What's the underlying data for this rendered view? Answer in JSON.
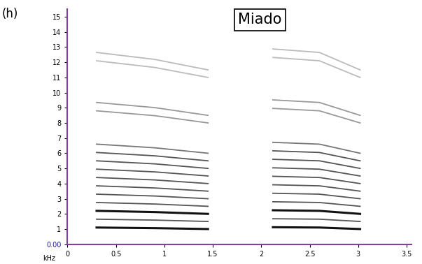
{
  "chart_data": {
    "type": "line",
    "title": "Miado",
    "panel_label": "(h)",
    "ylabel": "kHz",
    "xlim": [
      0,
      3.55
    ],
    "xticks": [
      0,
      0.5,
      1,
      1.5,
      2,
      2.5,
      3,
      3.5
    ],
    "ylim": [
      0,
      15.5
    ],
    "yticks": [
      {
        "value": 0,
        "label": "0.00"
      },
      1,
      2,
      3,
      4,
      5,
      6,
      7,
      8,
      9,
      10,
      11,
      12,
      13,
      14,
      15
    ],
    "grid": false,
    "series": [
      {
        "color": "#111111",
        "x": [
          0.3,
          0.9,
          1.45
        ],
        "values": [
          1.1,
          1.06,
          1.0
        ]
      },
      {
        "color": "#555555",
        "x": [
          0.3,
          0.9,
          1.45
        ],
        "values": [
          1.65,
          1.59,
          1.5
        ]
      },
      {
        "color": "#111111",
        "x": [
          0.3,
          0.9,
          1.45
        ],
        "values": [
          2.2,
          2.12,
          2.0
        ]
      },
      {
        "color": "#555555",
        "x": [
          0.3,
          0.9,
          1.45
        ],
        "values": [
          2.75,
          2.65,
          2.5
        ]
      },
      {
        "color": "#555555",
        "x": [
          0.3,
          0.9,
          1.45
        ],
        "values": [
          3.3,
          3.18,
          3.0
        ]
      },
      {
        "color": "#555555",
        "x": [
          0.3,
          0.9,
          1.45
        ],
        "values": [
          3.85,
          3.71,
          3.5
        ]
      },
      {
        "color": "#555555",
        "x": [
          0.3,
          0.9,
          1.45
        ],
        "values": [
          4.4,
          4.24,
          4.0
        ]
      },
      {
        "color": "#555555",
        "x": [
          0.3,
          0.9,
          1.45
        ],
        "values": [
          4.95,
          4.77,
          4.5
        ]
      },
      {
        "color": "#555555",
        "x": [
          0.3,
          0.9,
          1.45
        ],
        "values": [
          5.5,
          5.3,
          5.0
        ]
      },
      {
        "color": "#555555",
        "x": [
          0.3,
          0.9,
          1.45
        ],
        "values": [
          6.05,
          5.83,
          5.5
        ]
      },
      {
        "color": "#777777",
        "x": [
          0.3,
          0.9,
          1.45
        ],
        "values": [
          6.6,
          6.36,
          6.0
        ]
      },
      {
        "color": "#999999",
        "x": [
          0.3,
          0.9,
          1.45
        ],
        "values": [
          8.8,
          8.48,
          8.0
        ]
      },
      {
        "color": "#999999",
        "x": [
          0.3,
          0.9,
          1.45
        ],
        "values": [
          9.35,
          9.01,
          8.5
        ]
      },
      {
        "color": "#bbbbbb",
        "x": [
          0.3,
          0.9,
          1.45
        ],
        "values": [
          12.1,
          11.66,
          11.0
        ]
      },
      {
        "color": "#bbbbbb",
        "x": [
          0.3,
          0.9,
          1.45
        ],
        "values": [
          12.65,
          12.19,
          11.5
        ]
      },
      {
        "color": "#111111",
        "x": [
          2.12,
          2.6,
          3.02
        ],
        "values": [
          1.12,
          1.1,
          1.0
        ]
      },
      {
        "color": "#555555",
        "x": [
          2.12,
          2.6,
          3.02
        ],
        "values": [
          1.68,
          1.65,
          1.5
        ]
      },
      {
        "color": "#111111",
        "x": [
          2.12,
          2.6,
          3.02
        ],
        "values": [
          2.24,
          2.2,
          2.0
        ]
      },
      {
        "color": "#555555",
        "x": [
          2.12,
          2.6,
          3.02
        ],
        "values": [
          2.8,
          2.75,
          2.5
        ]
      },
      {
        "color": "#555555",
        "x": [
          2.12,
          2.6,
          3.02
        ],
        "values": [
          3.36,
          3.3,
          3.0
        ]
      },
      {
        "color": "#555555",
        "x": [
          2.12,
          2.6,
          3.02
        ],
        "values": [
          3.92,
          3.85,
          3.5
        ]
      },
      {
        "color": "#555555",
        "x": [
          2.12,
          2.6,
          3.02
        ],
        "values": [
          4.48,
          4.4,
          4.0
        ]
      },
      {
        "color": "#555555",
        "x": [
          2.12,
          2.6,
          3.02
        ],
        "values": [
          5.04,
          4.95,
          4.5
        ]
      },
      {
        "color": "#555555",
        "x": [
          2.12,
          2.6,
          3.02
        ],
        "values": [
          5.6,
          5.5,
          5.0
        ]
      },
      {
        "color": "#555555",
        "x": [
          2.12,
          2.6,
          3.02
        ],
        "values": [
          6.16,
          6.05,
          5.5
        ]
      },
      {
        "color": "#777777",
        "x": [
          2.12,
          2.6,
          3.02
        ],
        "values": [
          6.72,
          6.6,
          6.0
        ]
      },
      {
        "color": "#999999",
        "x": [
          2.12,
          2.6,
          3.02
        ],
        "values": [
          8.96,
          8.8,
          8.0
        ]
      },
      {
        "color": "#999999",
        "x": [
          2.12,
          2.6,
          3.02
        ],
        "values": [
          9.52,
          9.35,
          8.5
        ]
      },
      {
        "color": "#bbbbbb",
        "x": [
          2.12,
          2.6,
          3.02
        ],
        "values": [
          12.32,
          12.1,
          11.0
        ]
      },
      {
        "color": "#bbbbbb",
        "x": [
          2.12,
          2.6,
          3.02
        ],
        "values": [
          12.88,
          12.65,
          11.5
        ]
      }
    ]
  }
}
